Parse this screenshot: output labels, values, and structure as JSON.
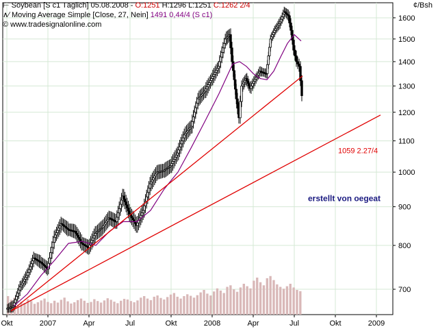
{
  "header": {
    "line1": {
      "symbol": "Soybean [S c1  Täglich] 05.08.2008 - ",
      "open": "O:1251",
      "high": " H:1296",
      "low": " L:1251",
      "close": " C:1262 2/4"
    },
    "line2": {
      "indicator": "Moving Average Simple [Close, 27, Nein]",
      "values": " 1491 0,44/4 (S c1)"
    },
    "line3": "© www.tradesignalonline.com"
  },
  "colors": {
    "background": "#ffffff",
    "grid": "#d4e8d4",
    "candle": "#000000",
    "moving_average": "#800080",
    "trendline": "#e00000",
    "volume": "#d9b8b8",
    "watermark": "#1a1a80"
  },
  "chart_data": {
    "type": "line",
    "unit_label": "¢/Bsh",
    "y_scale": "log",
    "ylim": [
      648,
      1675
    ],
    "y_ticks": [
      700,
      800,
      900,
      1000,
      1100,
      1200,
      1300,
      1400,
      1500,
      1600
    ],
    "x_ticks": [
      "Okt",
      "2007",
      "Apr",
      "Jul",
      "Okt",
      "2008",
      "Apr",
      "Jul",
      "Okt",
      "2009"
    ],
    "x_tick_months": [
      0,
      3,
      6,
      9,
      12,
      15,
      18,
      21,
      24,
      27
    ],
    "x_range_months": [
      -0.3,
      28.2
    ],
    "price_series": {
      "name": "Soybean",
      "points": [
        [
          0,
          660
        ],
        [
          0.5,
          665
        ],
        [
          1,
          705
        ],
        [
          1.5,
          730
        ],
        [
          2,
          770
        ],
        [
          2.5,
          760
        ],
        [
          3,
          745
        ],
        [
          3.5,
          820
        ],
        [
          4,
          855
        ],
        [
          4.5,
          840
        ],
        [
          5,
          835
        ],
        [
          5.5,
          805
        ],
        [
          6,
          795
        ],
        [
          6.5,
          830
        ],
        [
          7,
          845
        ],
        [
          7.5,
          870
        ],
        [
          8,
          860
        ],
        [
          8.5,
          930
        ],
        [
          9,
          880
        ],
        [
          9.5,
          850
        ],
        [
          10,
          890
        ],
        [
          10.5,
          965
        ],
        [
          11,
          1000
        ],
        [
          11.5,
          1005
        ],
        [
          12,
          1020
        ],
        [
          12.5,
          1060
        ],
        [
          13,
          1120
        ],
        [
          13.5,
          1150
        ],
        [
          14,
          1250
        ],
        [
          14.5,
          1280
        ],
        [
          15,
          1330
        ],
        [
          15.5,
          1380
        ],
        [
          16,
          1500
        ],
        [
          16.3,
          1520
        ],
        [
          16.5,
          1400
        ],
        [
          16.8,
          1250
        ],
        [
          17,
          1180
        ],
        [
          17.2,
          1300
        ],
        [
          17.5,
          1330
        ],
        [
          17.8,
          1290
        ],
        [
          18,
          1310
        ],
        [
          18.5,
          1360
        ],
        [
          19,
          1350
        ],
        [
          19.3,
          1500
        ],
        [
          19.6,
          1540
        ],
        [
          20,
          1580
        ],
        [
          20.3,
          1630
        ],
        [
          20.6,
          1610
        ],
        [
          20.8,
          1540
        ],
        [
          21,
          1450
        ],
        [
          21.2,
          1400
        ],
        [
          21.4,
          1380
        ],
        [
          21.6,
          1262
        ]
      ]
    },
    "moving_average": {
      "name": "Moving Average Simple [Close, 27, Nein]",
      "points": [
        [
          0.5,
          665
        ],
        [
          1.5,
          690
        ],
        [
          2.5,
          730
        ],
        [
          3.5,
          765
        ],
        [
          4.5,
          805
        ],
        [
          5.5,
          810
        ],
        [
          6.5,
          800
        ],
        [
          7.5,
          835
        ],
        [
          8.5,
          860
        ],
        [
          9.5,
          860
        ],
        [
          10.5,
          890
        ],
        [
          11.5,
          950
        ],
        [
          12.5,
          1000
        ],
        [
          13.5,
          1080
        ],
        [
          14.5,
          1170
        ],
        [
          15.5,
          1270
        ],
        [
          16.5,
          1390
        ],
        [
          17,
          1400
        ],
        [
          17.5,
          1380
        ],
        [
          18,
          1350
        ],
        [
          18.5,
          1330
        ],
        [
          19,
          1325
        ],
        [
          19.5,
          1360
        ],
        [
          20,
          1420
        ],
        [
          20.5,
          1480
        ],
        [
          21,
          1520
        ],
        [
          21.5,
          1491
        ]
      ]
    },
    "trendlines": [
      {
        "from": [
          0.3,
          655
        ],
        "to": [
          21.6,
          1340
        ]
      },
      {
        "from": [
          0.3,
          655
        ],
        "to": [
          27.3,
          1190
        ],
        "label": "1059 2.27/4",
        "label_at": [
          24.2,
          1059
        ]
      }
    ],
    "annotation": "erstellt von oegeat",
    "annotation_at": [
      22,
      915
    ],
    "volume": [
      60,
      48,
      55,
      30,
      42,
      38,
      50,
      44,
      35,
      40,
      46,
      52,
      41,
      37,
      45,
      39,
      48,
      55,
      43,
      36,
      40,
      47,
      52,
      45,
      38,
      41,
      50,
      44,
      39,
      46,
      53,
      48,
      42,
      37,
      45,
      51,
      49,
      44,
      40,
      46,
      55,
      60,
      52,
      47,
      58,
      62,
      54,
      49,
      57,
      65,
      70,
      58,
      52,
      60,
      66,
      61,
      55,
      63,
      72,
      80,
      68,
      62,
      75,
      85,
      78,
      70,
      90,
      95,
      82,
      74,
      88,
      100,
      92,
      85,
      110,
      120,
      105,
      95,
      118,
      125,
      112,
      98,
      90,
      84,
      92,
      100,
      88,
      80,
      76
    ],
    "grid": true
  }
}
